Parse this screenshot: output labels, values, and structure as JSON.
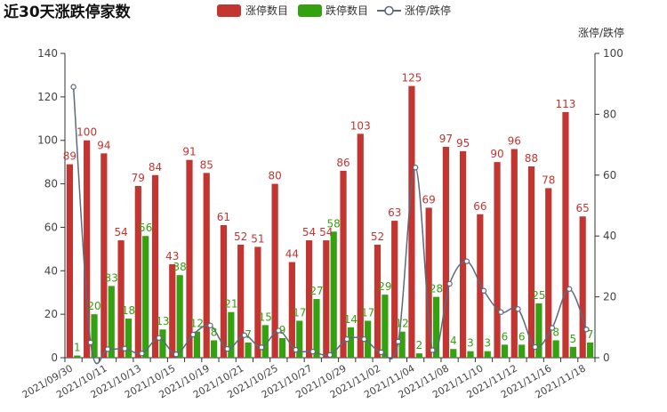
{
  "chart_data": {
    "type": "bar",
    "title": "近30天涨跌停家数",
    "legend": {
      "position": "top-center",
      "entries": [
        "涨停数目",
        "跌停数目",
        "涨停/跌停"
      ]
    },
    "y_left": {
      "ylim": [
        0,
        140
      ],
      "ticks": [
        0,
        20,
        40,
        60,
        80,
        100,
        120,
        140
      ]
    },
    "y_right": {
      "label": "涨停/跌停",
      "ylim": [
        0,
        100
      ],
      "ticks": [
        0,
        20,
        40,
        60,
        80,
        100
      ]
    },
    "grid": false,
    "colors": {
      "limit_up": "#c23531",
      "limit_down": "#34a111",
      "ratio_line": "#5b6a7e"
    },
    "x": [
      "2021/09/30",
      "2021/10/08",
      "2021/10/11",
      "2021/10/12",
      "2021/10/13",
      "2021/10/14",
      "2021/10/15",
      "2021/10/18",
      "2021/10/19",
      "2021/10/20",
      "2021/10/21",
      "2021/10/22",
      "2021/10/25",
      "2021/10/26",
      "2021/10/27",
      "2021/10/28",
      "2021/10/29",
      "2021/11/01",
      "2021/11/02",
      "2021/11/03",
      "2021/11/04",
      "2021/11/05",
      "2021/11/08",
      "2021/11/09",
      "2021/11/10",
      "2021/11/11",
      "2021/11/12",
      "2021/11/15",
      "2021/11/16",
      "2021/11/17",
      "2021/11/18"
    ],
    "x_tick_labels": [
      "2021/09/30",
      "",
      "2021/10/11",
      "",
      "2021/10/13",
      "",
      "2021/10/15",
      "",
      "2021/10/19",
      "",
      "2021/10/21",
      "",
      "2021/10/25",
      "",
      "2021/10/27",
      "",
      "2021/10/29",
      "",
      "2021/11/02",
      "",
      "2021/11/04",
      "",
      "2021/11/08",
      "",
      "2021/11/10",
      "",
      "2021/11/12",
      "",
      "2021/11/16",
      "",
      "2021/11/18"
    ],
    "series": [
      {
        "name": "涨停数目",
        "axis": "left",
        "type": "bar",
        "values": [
          89,
          100,
          94,
          54,
          79,
          84,
          43,
          91,
          85,
          61,
          52,
          51,
          80,
          44,
          54,
          54,
          86,
          103,
          52,
          63,
          125,
          69,
          97,
          95,
          66,
          90,
          96,
          88,
          78,
          113,
          65
        ]
      },
      {
        "name": "跌停数目",
        "axis": "left",
        "type": "bar",
        "values": [
          1,
          20,
          33,
          18,
          56,
          13,
          38,
          12,
          8,
          21,
          7,
          15,
          9,
          17,
          27,
          58,
          14,
          17,
          29,
          12,
          2,
          28,
          4,
          3,
          3,
          6,
          6,
          25,
          8,
          5,
          7
        ]
      },
      {
        "name": "涨停/跌停",
        "axis": "right",
        "type": "line",
        "smooth": true,
        "values": [
          89,
          5,
          2.8,
          3,
          1.4,
          6.5,
          1.1,
          7.6,
          10.6,
          2.9,
          7.4,
          3.4,
          8.9,
          2.6,
          2,
          0.9,
          6.1,
          6.1,
          1.8,
          5.3,
          62.5,
          2.5,
          24.3,
          31.7,
          22,
          15,
          16,
          3.5,
          9.8,
          22.6,
          9.3
        ]
      }
    ],
    "bar_data_labels": {
      "limit_up": [
        "89",
        "100",
        "94",
        "54",
        "79",
        "84",
        "43",
        "91",
        "85",
        "61",
        "52",
        "51",
        "80",
        "44",
        "54",
        "54",
        "86",
        "103",
        "52",
        "63",
        "125",
        "69",
        "97",
        "95",
        "66",
        "90",
        "96",
        "88",
        "78",
        "113",
        "65"
      ],
      "limit_down": [
        "1",
        "20",
        "33",
        "18",
        "56",
        "13",
        "38",
        "12",
        "8",
        "21",
        "7",
        "15",
        "9",
        "17",
        "27",
        "58",
        "14",
        "17",
        "29",
        "12",
        "2",
        "28",
        "4",
        "3",
        "3",
        "6",
        "6",
        "25",
        "8",
        "5",
        "7"
      ]
    }
  }
}
